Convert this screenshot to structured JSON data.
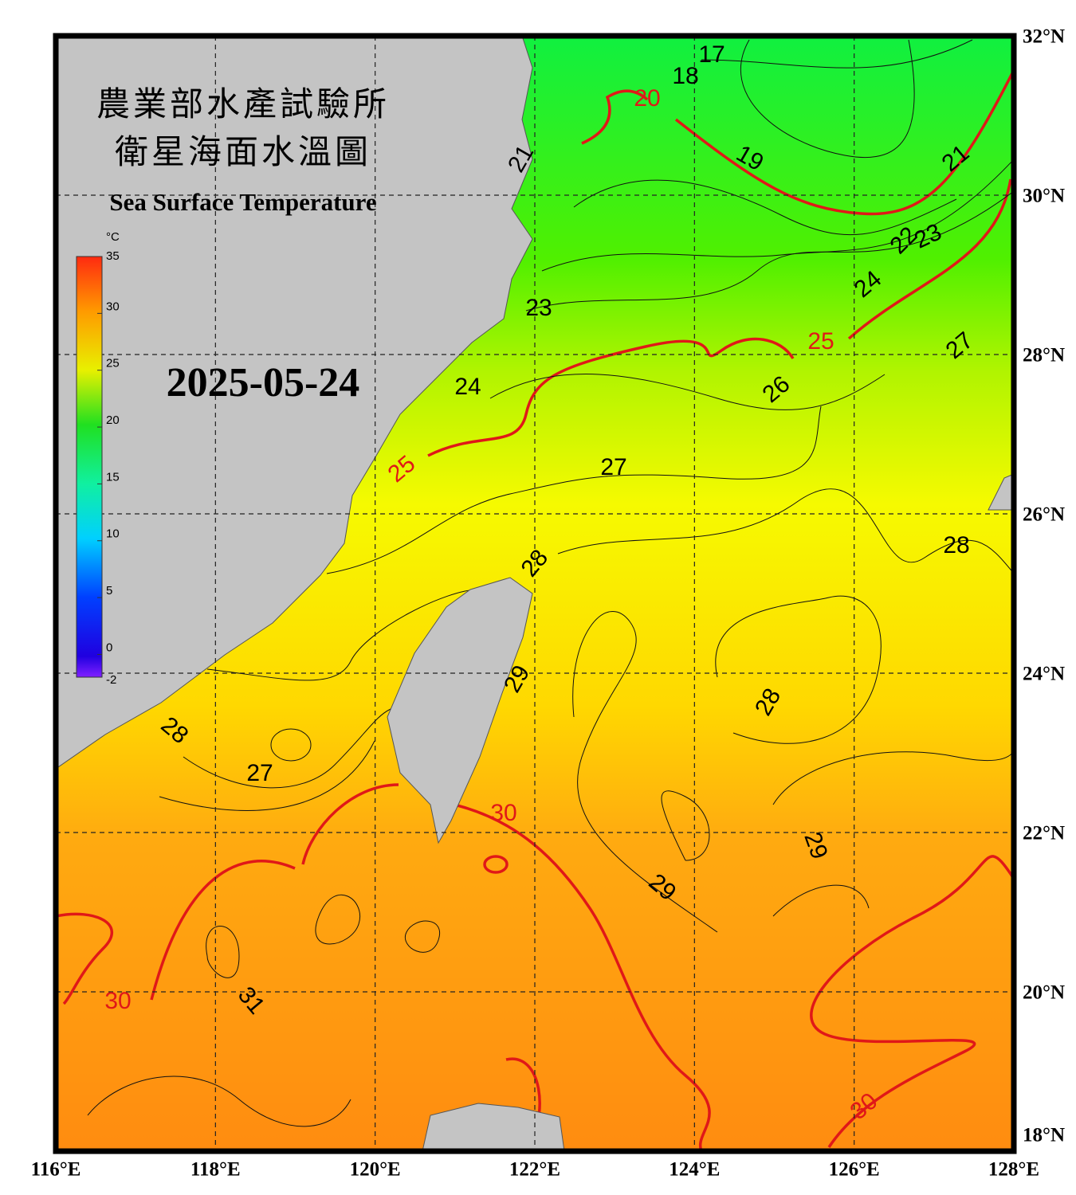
{
  "title_zh": [
    "農業部水產試驗所",
    "衛星海面水溫圖"
  ],
  "title_en": "Sea Surface Temperature",
  "date": "2025-05-24",
  "colorbar": {
    "unit": "°C",
    "ticks": [
      35,
      30,
      25,
      20,
      15,
      10,
      5,
      0,
      -2
    ]
  },
  "lon_labels": [
    "116°E",
    "118°E",
    "120°E",
    "122°E",
    "124°E",
    "126°E",
    "128°E"
  ],
  "lat_labels": [
    "32°N",
    "30°N",
    "28°N",
    "26°N",
    "24°N",
    "22°N",
    "20°N",
    "18°N"
  ],
  "contour_labels": [
    "17",
    "18",
    "20",
    "19",
    "21",
    "21",
    "22",
    "23",
    "24",
    "23",
    "25",
    "27",
    "24",
    "26",
    "25",
    "27",
    "28",
    "28",
    "29",
    "28",
    "28",
    "27",
    "30",
    "29",
    "29",
    "30",
    "31",
    "30"
  ]
}
